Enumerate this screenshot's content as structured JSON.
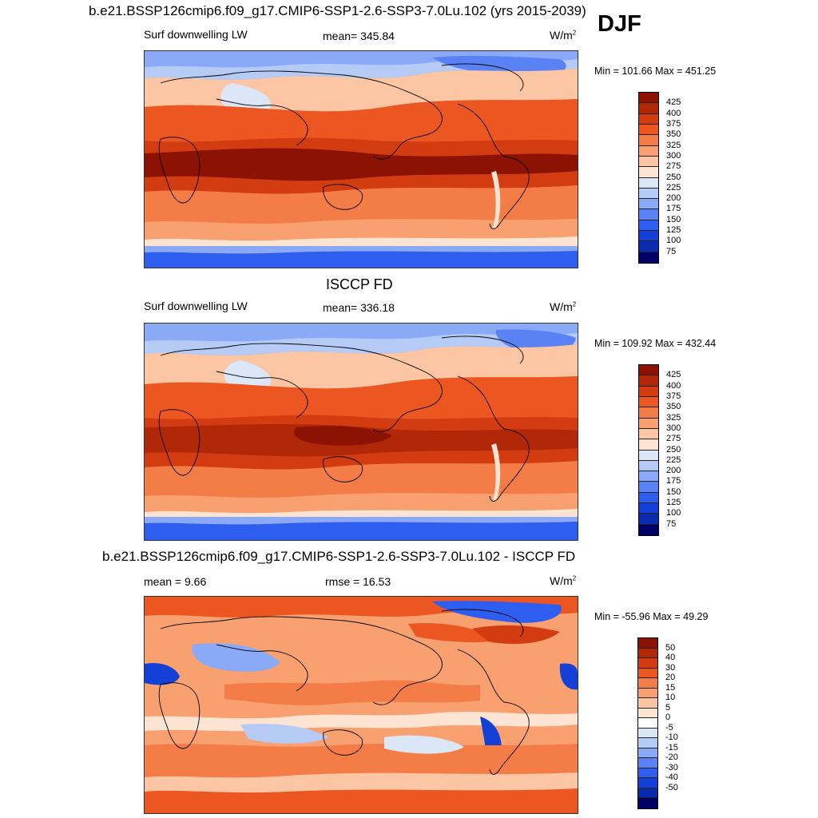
{
  "season": "DJF",
  "main_title": "b.e21.BSSP126cmip6.f09_g17.CMIP6-SSP1-2.6-SSP3-7.0Lu.102 (yrs 2015-2039)",
  "colors": {
    "abs": [
      "#000066",
      "#0a2ab0",
      "#1440d8",
      "#2e5ef0",
      "#5b82f5",
      "#8aaaf7",
      "#b5cbf5",
      "#dbe6f7",
      "#fde4d2",
      "#fcc6a4",
      "#f9a071",
      "#f47c46",
      "#eb5621",
      "#d23c10",
      "#b02807",
      "#8c1204"
    ],
    "diff": [
      "#000066",
      "#0a2ab0",
      "#1440d8",
      "#2e5ef0",
      "#5b82f5",
      "#8aaaf7",
      "#b5cbf5",
      "#dbe6f7",
      "#ffffff",
      "#fde4d2",
      "#fcc6a4",
      "#f9a071",
      "#f47c46",
      "#eb5621",
      "#d23c10",
      "#b02807",
      "#8c1204"
    ]
  },
  "panels": [
    {
      "header": "",
      "variable": "Surf downwelling LW",
      "stat": "mean= 345.84",
      "rmse": "",
      "units": "W/m",
      "units_exp": "2",
      "minmax": "Min = 101.66 Max = 451.25",
      "levels": [
        "425",
        "400",
        "375",
        "350",
        "325",
        "300",
        "275",
        "250",
        "225",
        "200",
        "175",
        "150",
        "125",
        "100",
        "75"
      ],
      "palette": "abs"
    },
    {
      "header": "ISCCP FD",
      "variable": "Surf downwelling LW",
      "stat": "mean= 336.18",
      "rmse": "",
      "units": "W/m",
      "units_exp": "2",
      "minmax": "Min = 109.92 Max = 432.44",
      "levels": [
        "425",
        "400",
        "375",
        "350",
        "325",
        "300",
        "275",
        "250",
        "225",
        "200",
        "175",
        "150",
        "125",
        "100",
        "75"
      ],
      "palette": "abs"
    },
    {
      "header": "b.e21.BSSP126cmip6.f09_g17.CMIP6-SSP1-2.6-SSP3-7.0Lu.102 - ISCCP FD",
      "variable": "",
      "stat": "mean =   9.66",
      "rmse": "rmse =  16.53",
      "units": "W/m",
      "units_exp": "2",
      "minmax": "Min = -55.96 Max =  49.29",
      "levels": [
        "50",
        "40",
        "30",
        "20",
        "15",
        "10",
        "5",
        "0",
        "-5",
        "-10",
        "-15",
        "-20",
        "-30",
        "-40",
        "-50"
      ],
      "palette": "diff"
    }
  ]
}
